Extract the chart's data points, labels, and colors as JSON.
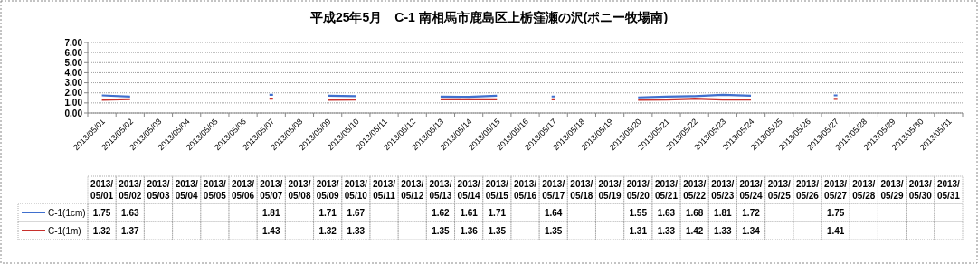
{
  "chart_data": {
    "type": "line",
    "title": "平成25年5月　C-1 南相馬市鹿島区上栃窪瀬の沢(ポニー牧場南)",
    "categories": [
      "2013/05/01",
      "2013/05/02",
      "2013/05/03",
      "2013/05/04",
      "2013/05/05",
      "2013/05/06",
      "2013/05/07",
      "2013/05/08",
      "2013/05/09",
      "2013/05/10",
      "2013/05/11",
      "2013/05/12",
      "2013/05/13",
      "2013/05/14",
      "2013/05/15",
      "2013/05/16",
      "2013/05/17",
      "2013/05/18",
      "2013/05/19",
      "2013/05/20",
      "2013/05/21",
      "2013/05/22",
      "2013/05/23",
      "2013/05/24",
      "2013/05/25",
      "2013/05/26",
      "2013/05/27",
      "2013/05/28",
      "2013/05/29",
      "2013/05/30",
      "2013/05/31"
    ],
    "series": [
      {
        "name": "C-1(1cm)",
        "color": "#3f6fce",
        "values": [
          1.75,
          1.63,
          null,
          null,
          null,
          null,
          1.81,
          null,
          1.71,
          1.67,
          null,
          null,
          1.62,
          1.61,
          1.71,
          null,
          1.64,
          null,
          null,
          1.55,
          1.63,
          1.68,
          1.81,
          1.72,
          null,
          null,
          1.75,
          null,
          null,
          null,
          null
        ]
      },
      {
        "name": "C-1(1m)",
        "color": "#c8302c",
        "values": [
          1.32,
          1.37,
          null,
          null,
          null,
          null,
          1.43,
          null,
          1.32,
          1.33,
          null,
          null,
          1.35,
          1.36,
          1.35,
          null,
          1.35,
          null,
          null,
          1.31,
          1.33,
          1.42,
          1.33,
          1.34,
          null,
          null,
          1.41,
          null,
          null,
          null,
          null
        ]
      }
    ],
    "ylim": [
      0,
      7
    ],
    "yticks": [
      {
        "value": 0,
        "label": "0.00"
      },
      {
        "value": 1,
        "label": "1.00"
      },
      {
        "value": 2,
        "label": "2.00"
      },
      {
        "value": 3,
        "label": "3.00"
      },
      {
        "value": 4,
        "label": "4.00"
      },
      {
        "value": 5,
        "label": "5.00"
      },
      {
        "value": 6,
        "label": "6.00"
      },
      {
        "value": 7,
        "label": "7.00"
      }
    ],
    "grid": "y",
    "legend": "bottom left",
    "data_labels": true,
    "marker": "none",
    "line_style": "solid"
  }
}
